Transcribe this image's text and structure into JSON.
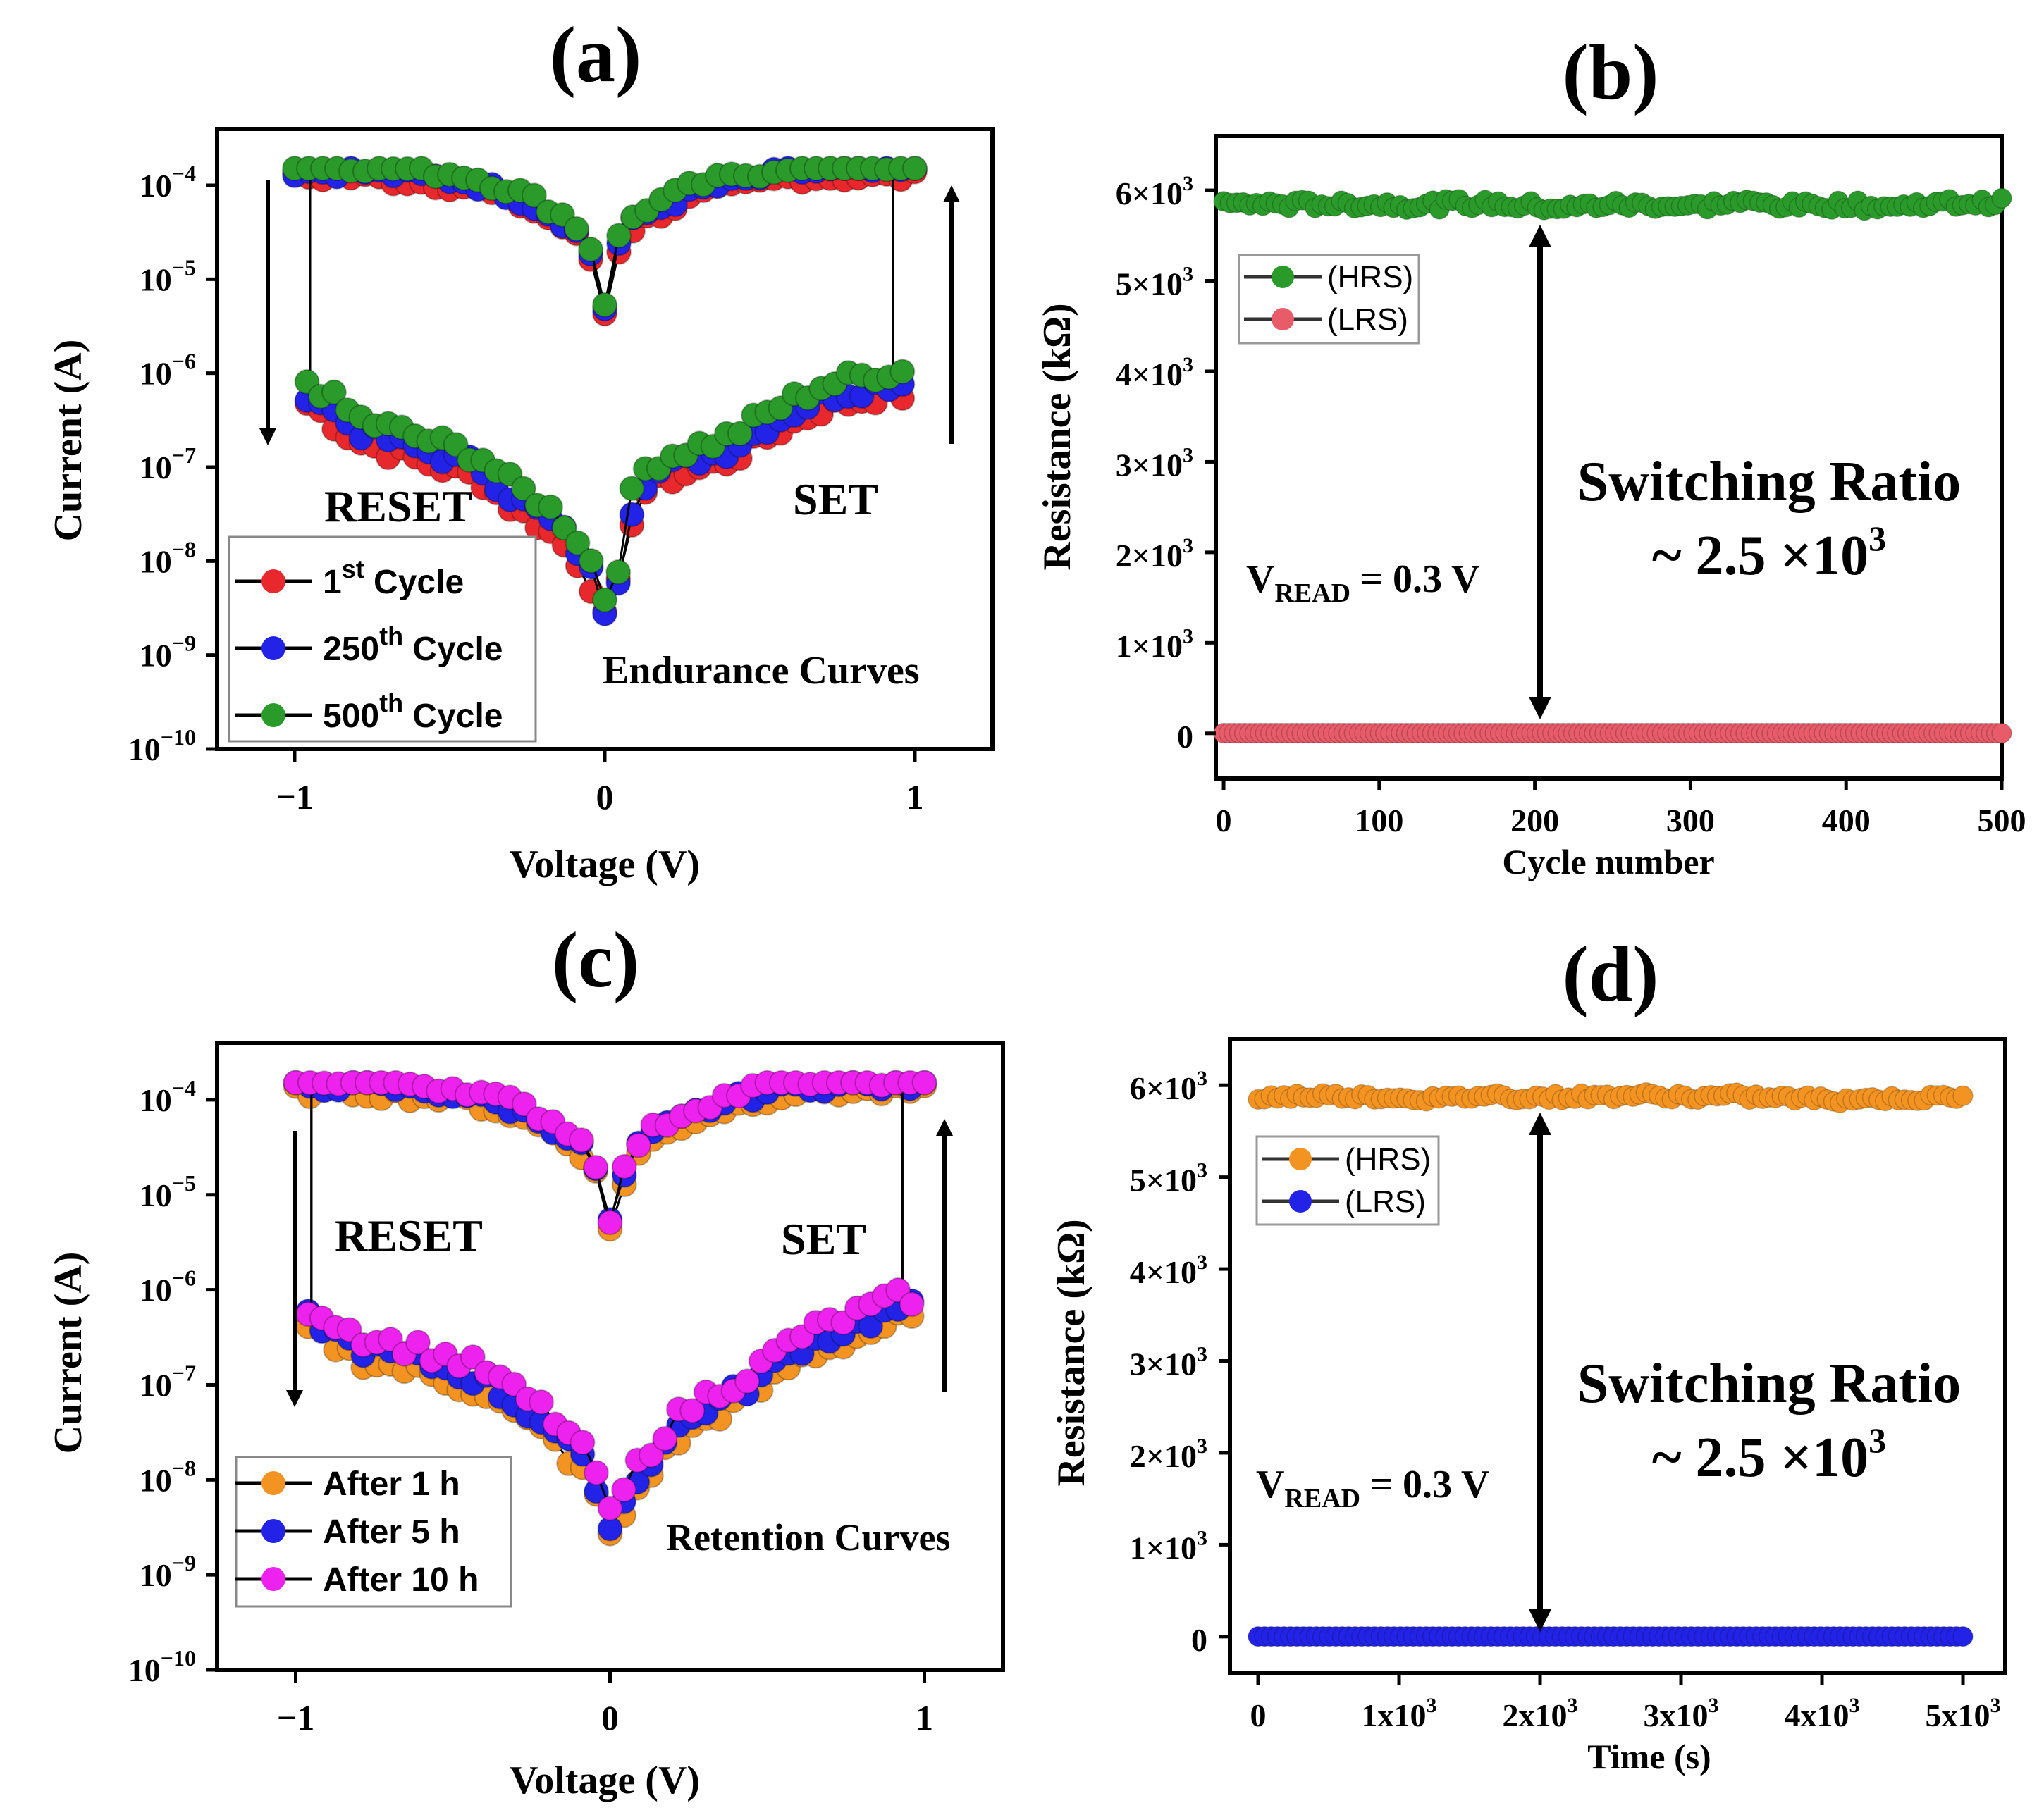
{
  "figure": {
    "panel_labels": [
      "(a)",
      "(b)",
      "(c)",
      "(d)"
    ]
  },
  "colors": {
    "red": "#e8282c",
    "blue": "#2323e8",
    "green": "#2a9a2a",
    "orange": "#f39322",
    "magenta": "#ee22ee",
    "lrs_pink": "#e85c6a",
    "axis": "#000000"
  },
  "chart_data": [
    {
      "id": "a",
      "type": "scatter",
      "yscale": "log",
      "title": "Endurance Curves",
      "xlabel": "Voltage (V)",
      "ylabel": "Current (A)",
      "xlim": [
        -1.25,
        1.25
      ],
      "ylim_exp": [
        -10,
        -3.4
      ],
      "x_ticks": [
        -1,
        0,
        1
      ],
      "x_tick_labels": [
        "−1",
        "0",
        "1"
      ],
      "y_ticks_exp": [
        -4,
        -5,
        -6,
        -7,
        -8,
        -9,
        -10
      ],
      "y_tick_labels": [
        {
          "base": "10",
          "exp": "−4"
        },
        {
          "base": "10",
          "exp": "−5"
        },
        {
          "base": "10",
          "exp": "−6"
        },
        {
          "base": "10",
          "exp": "−7"
        },
        {
          "base": "10",
          "exp": "−8"
        },
        {
          "base": "10",
          "exp": "−9"
        },
        {
          "base": "10",
          "exp": "−10"
        }
      ],
      "annotations": {
        "reset": "RESET",
        "set": "SET"
      },
      "legend": [
        {
          "base": "1",
          "sup": "st",
          "rest": " Cycle",
          "color": "red"
        },
        {
          "base": "250",
          "sup": "th",
          "rest": " Cycle",
          "color": "blue"
        },
        {
          "base": "500",
          "sup": "th",
          "rest": " Cycle",
          "color": "green"
        }
      ],
      "series": [
        {
          "name": "1st Cycle",
          "color": "red",
          "variant": 0
        },
        {
          "name": "250th Cycle",
          "color": "blue",
          "variant": 1
        },
        {
          "name": "500th Cycle",
          "color": "green",
          "variant": 2
        }
      ],
      "curve_points": {
        "hrs_v": [
          -0.95,
          -0.8,
          -0.6,
          -0.4,
          -0.3,
          -0.2,
          -0.1,
          -0.03,
          0.0,
          0.05,
          0.1,
          0.2,
          0.3,
          0.4,
          0.55,
          0.7,
          0.9
        ],
        "hrs_logI": [
          -6.2,
          -6.6,
          -6.8,
          -7.0,
          -7.3,
          -7.5,
          -7.8,
          -8.2,
          -8.5,
          -8.1,
          -7.2,
          -7.0,
          -6.9,
          -6.8,
          -6.5,
          -6.25,
          -6.1
        ],
        "lrs_v": [
          -1.0,
          -0.8,
          -0.6,
          -0.45,
          -0.3,
          -0.2,
          -0.1,
          -0.03,
          0.0,
          0.03,
          0.1,
          0.2,
          0.3,
          0.45,
          0.6,
          0.8,
          1.0
        ],
        "lrs_logI": [
          -3.85,
          -3.85,
          -3.9,
          -3.95,
          -4.1,
          -4.25,
          -4.45,
          -4.8,
          -5.3,
          -4.7,
          -4.35,
          -4.2,
          -4.05,
          -3.95,
          -3.85,
          -3.85,
          -3.85
        ]
      }
    },
    {
      "id": "b",
      "type": "scatter",
      "xlabel": "Cycle number",
      "ylabel": "Resistance (kΩ)",
      "xlim": [
        -5,
        500
      ],
      "ylim": [
        -500,
        6600
      ],
      "x_ticks": [
        0,
        100,
        200,
        300,
        400,
        500
      ],
      "x_tick_labels": [
        "0",
        "100",
        "200",
        "300",
        "400",
        "500"
      ],
      "y_ticks": [
        0,
        1000,
        2000,
        3000,
        4000,
        5000,
        6000
      ],
      "y_tick_labels": [
        {
          "base": "0",
          "exp": ""
        },
        {
          "base": "1×10",
          "exp": "3"
        },
        {
          "base": "2×10",
          "exp": "3"
        },
        {
          "base": "3×10",
          "exp": "3"
        },
        {
          "base": "4×10",
          "exp": "3"
        },
        {
          "base": "5×10",
          "exp": "3"
        },
        {
          "base": "6×10",
          "exp": "3"
        }
      ],
      "legend": [
        {
          "label": "(HRS)",
          "color": "green"
        },
        {
          "label": "(LRS)",
          "color": "lrs_pink"
        }
      ],
      "vread": {
        "prefix": "V",
        "sub": "READ",
        "suffix": " = 0.3 V"
      },
      "ratio": {
        "line1": "Switching Ratio",
        "line2": "~ 2.5 ×10",
        "sup": "3"
      },
      "series": [
        {
          "name": "HRS",
          "color": "green",
          "n": 120,
          "x_max": 500,
          "mean": 5850,
          "jitter": 100
        },
        {
          "name": "LRS",
          "color": "lrs_pink",
          "n": 150,
          "x_max": 500,
          "mean": 2,
          "jitter": 0
        }
      ]
    },
    {
      "id": "c",
      "type": "scatter",
      "yscale": "log",
      "title": "Retention Curves",
      "xlabel": "Voltage (V)",
      "ylabel": "Current (A)",
      "xlim": [
        -1.25,
        1.25
      ],
      "ylim_exp": [
        -10,
        -3.4
      ],
      "x_ticks": [
        -1,
        0,
        1
      ],
      "x_tick_labels": [
        "−1",
        "0",
        "1"
      ],
      "y_ticks_exp": [
        -4,
        -5,
        -6,
        -7,
        -8,
        -9,
        -10
      ],
      "y_tick_labels": [
        {
          "base": "10",
          "exp": "−4"
        },
        {
          "base": "10",
          "exp": "−5"
        },
        {
          "base": "10",
          "exp": "−6"
        },
        {
          "base": "10",
          "exp": "−7"
        },
        {
          "base": "10",
          "exp": "−8"
        },
        {
          "base": "10",
          "exp": "−9"
        },
        {
          "base": "10",
          "exp": "−10"
        }
      ],
      "annotations": {
        "reset": "RESET",
        "set": "SET"
      },
      "legend": [
        {
          "base": "After 1 h",
          "sup": "",
          "rest": "",
          "color": "orange"
        },
        {
          "base": "After 5 h",
          "sup": "",
          "rest": "",
          "color": "blue"
        },
        {
          "base": "After 10 h",
          "sup": "",
          "rest": "",
          "color": "magenta"
        }
      ],
      "series": [
        {
          "name": "After 1 h",
          "color": "orange",
          "variant": 0
        },
        {
          "name": "After 5 h",
          "color": "blue",
          "variant": 1
        },
        {
          "name": "After 10 h",
          "color": "magenta",
          "variant": 2
        }
      ],
      "curve_points": {
        "hrs_v": [
          -0.95,
          -0.8,
          -0.6,
          -0.4,
          -0.3,
          -0.2,
          -0.1,
          -0.03,
          0.0,
          0.05,
          0.1,
          0.2,
          0.3,
          0.45,
          0.6,
          0.8,
          0.92
        ],
        "hrs_logI": [
          -6.3,
          -6.6,
          -6.75,
          -6.95,
          -7.2,
          -7.4,
          -7.75,
          -8.1,
          -8.5,
          -8.2,
          -7.9,
          -7.5,
          -7.25,
          -7.0,
          -6.6,
          -6.35,
          -6.2
        ],
        "lrs_v": [
          -0.95,
          -0.8,
          -0.6,
          -0.45,
          -0.3,
          -0.2,
          -0.1,
          -0.03,
          0.0,
          0.03,
          0.1,
          0.2,
          0.3,
          0.45,
          0.6,
          0.8,
          1.0
        ],
        "lrs_logI": [
          -3.85,
          -3.85,
          -3.9,
          -3.95,
          -4.1,
          -4.25,
          -4.45,
          -4.8,
          -5.3,
          -4.9,
          -4.45,
          -4.25,
          -4.1,
          -3.95,
          -3.85,
          -3.85,
          -3.85
        ]
      }
    },
    {
      "id": "d",
      "type": "scatter",
      "xlabel": "Time (s)",
      "ylabel": "Resistance (kΩ)",
      "xlim": [
        -200,
        5300
      ],
      "ylim": [
        -400,
        6500
      ],
      "x_ticks": [
        0,
        1000,
        2000,
        3000,
        4000,
        5000
      ],
      "x_tick_labels": [
        {
          "base": "0",
          "exp": ""
        },
        {
          "base": "1x10",
          "exp": "3"
        },
        {
          "base": "2x10",
          "exp": "3"
        },
        {
          "base": "3x10",
          "exp": "3"
        },
        {
          "base": "4x10",
          "exp": "3"
        },
        {
          "base": "5x10",
          "exp": "3"
        }
      ],
      "y_ticks": [
        0,
        1000,
        2000,
        3000,
        4000,
        5000,
        6000
      ],
      "y_tick_labels": [
        {
          "base": "0",
          "exp": ""
        },
        {
          "base": "1×10",
          "exp": "3"
        },
        {
          "base": "2×10",
          "exp": "3"
        },
        {
          "base": "3×10",
          "exp": "3"
        },
        {
          "base": "4×10",
          "exp": "3"
        },
        {
          "base": "5×10",
          "exp": "3"
        },
        {
          "base": "6×10",
          "exp": "3"
        }
      ],
      "legend": [
        {
          "label": "(HRS)",
          "color": "orange"
        },
        {
          "label": "(LRS)",
          "color": "blue"
        }
      ],
      "vread": {
        "prefix": "V",
        "sub": "READ",
        "suffix": " = 0.3 V"
      },
      "ratio": {
        "line1": "Switching Ratio",
        "line2": "~ 2.5 ×10",
        "sup": "3"
      },
      "series": [
        {
          "name": "HRS",
          "color": "orange",
          "n": 110,
          "x_max": 5000,
          "mean": 5870,
          "jitter": 70
        },
        {
          "name": "LRS",
          "color": "blue",
          "n": 110,
          "x_max": 5000,
          "mean": 2,
          "jitter": 0
        }
      ]
    }
  ]
}
